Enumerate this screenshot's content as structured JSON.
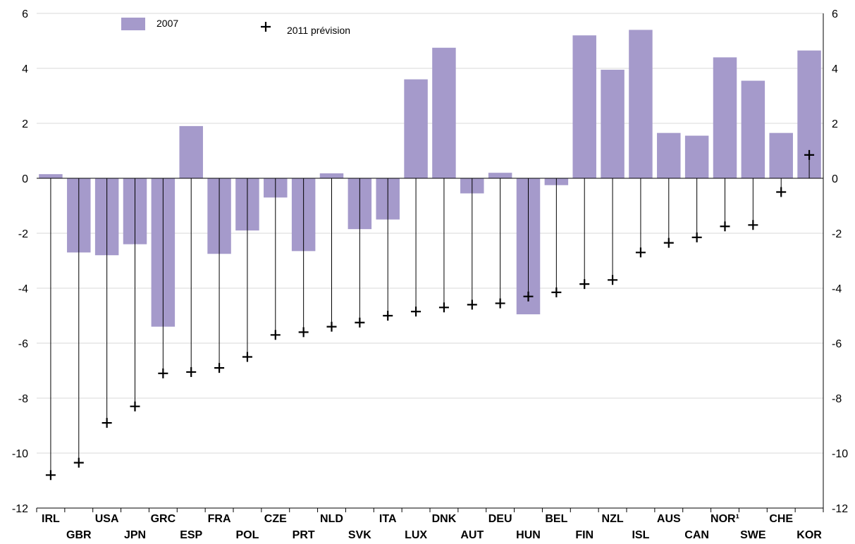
{
  "chart_data": {
    "type": "bar",
    "title": "",
    "xlabel": "",
    "ylabel": "",
    "ylim": [
      -12,
      6
    ],
    "yticks": [
      6,
      4,
      2,
      0,
      -2,
      -4,
      -6,
      -8,
      -10,
      -12
    ],
    "grid": true,
    "legend_position": "top-left",
    "categories": [
      "IRL",
      "GBR",
      "USA",
      "JPN",
      "GRC",
      "ESP",
      "FRA",
      "POL",
      "CZE",
      "PRT",
      "NLD",
      "SVK",
      "ITA",
      "LUX",
      "DNK",
      "AUT",
      "DEU",
      "HUN",
      "BEL",
      "FIN",
      "NZL",
      "ISL",
      "AUS",
      "CAN",
      "NOR¹",
      "SWE",
      "CHE",
      "KOR"
    ],
    "series": [
      {
        "name": "2007",
        "kind": "bar",
        "color": "#a59acb",
        "values": [
          0.15,
          -2.7,
          -2.8,
          -2.4,
          -5.4,
          1.9,
          -2.75,
          -1.9,
          -0.7,
          -2.65,
          0.18,
          -1.85,
          -1.5,
          3.6,
          4.75,
          -0.55,
          0.2,
          -4.95,
          -0.25,
          5.2,
          3.95,
          5.4,
          1.65,
          1.55,
          4.4,
          3.55,
          1.65,
          4.65
        ]
      },
      {
        "name": "2011 prévision",
        "kind": "marker",
        "color": "#000000",
        "values": [
          -10.8,
          -10.35,
          -8.9,
          -8.3,
          -7.1,
          -7.05,
          -6.9,
          -6.5,
          -5.7,
          -5.6,
          -5.4,
          -5.25,
          -5.0,
          -4.85,
          -4.7,
          -4.6,
          -4.55,
          -4.3,
          -4.15,
          -3.85,
          -3.7,
          -2.7,
          -2.35,
          -2.15,
          -1.75,
          -1.7,
          -0.5,
          0.85
        ]
      }
    ]
  }
}
